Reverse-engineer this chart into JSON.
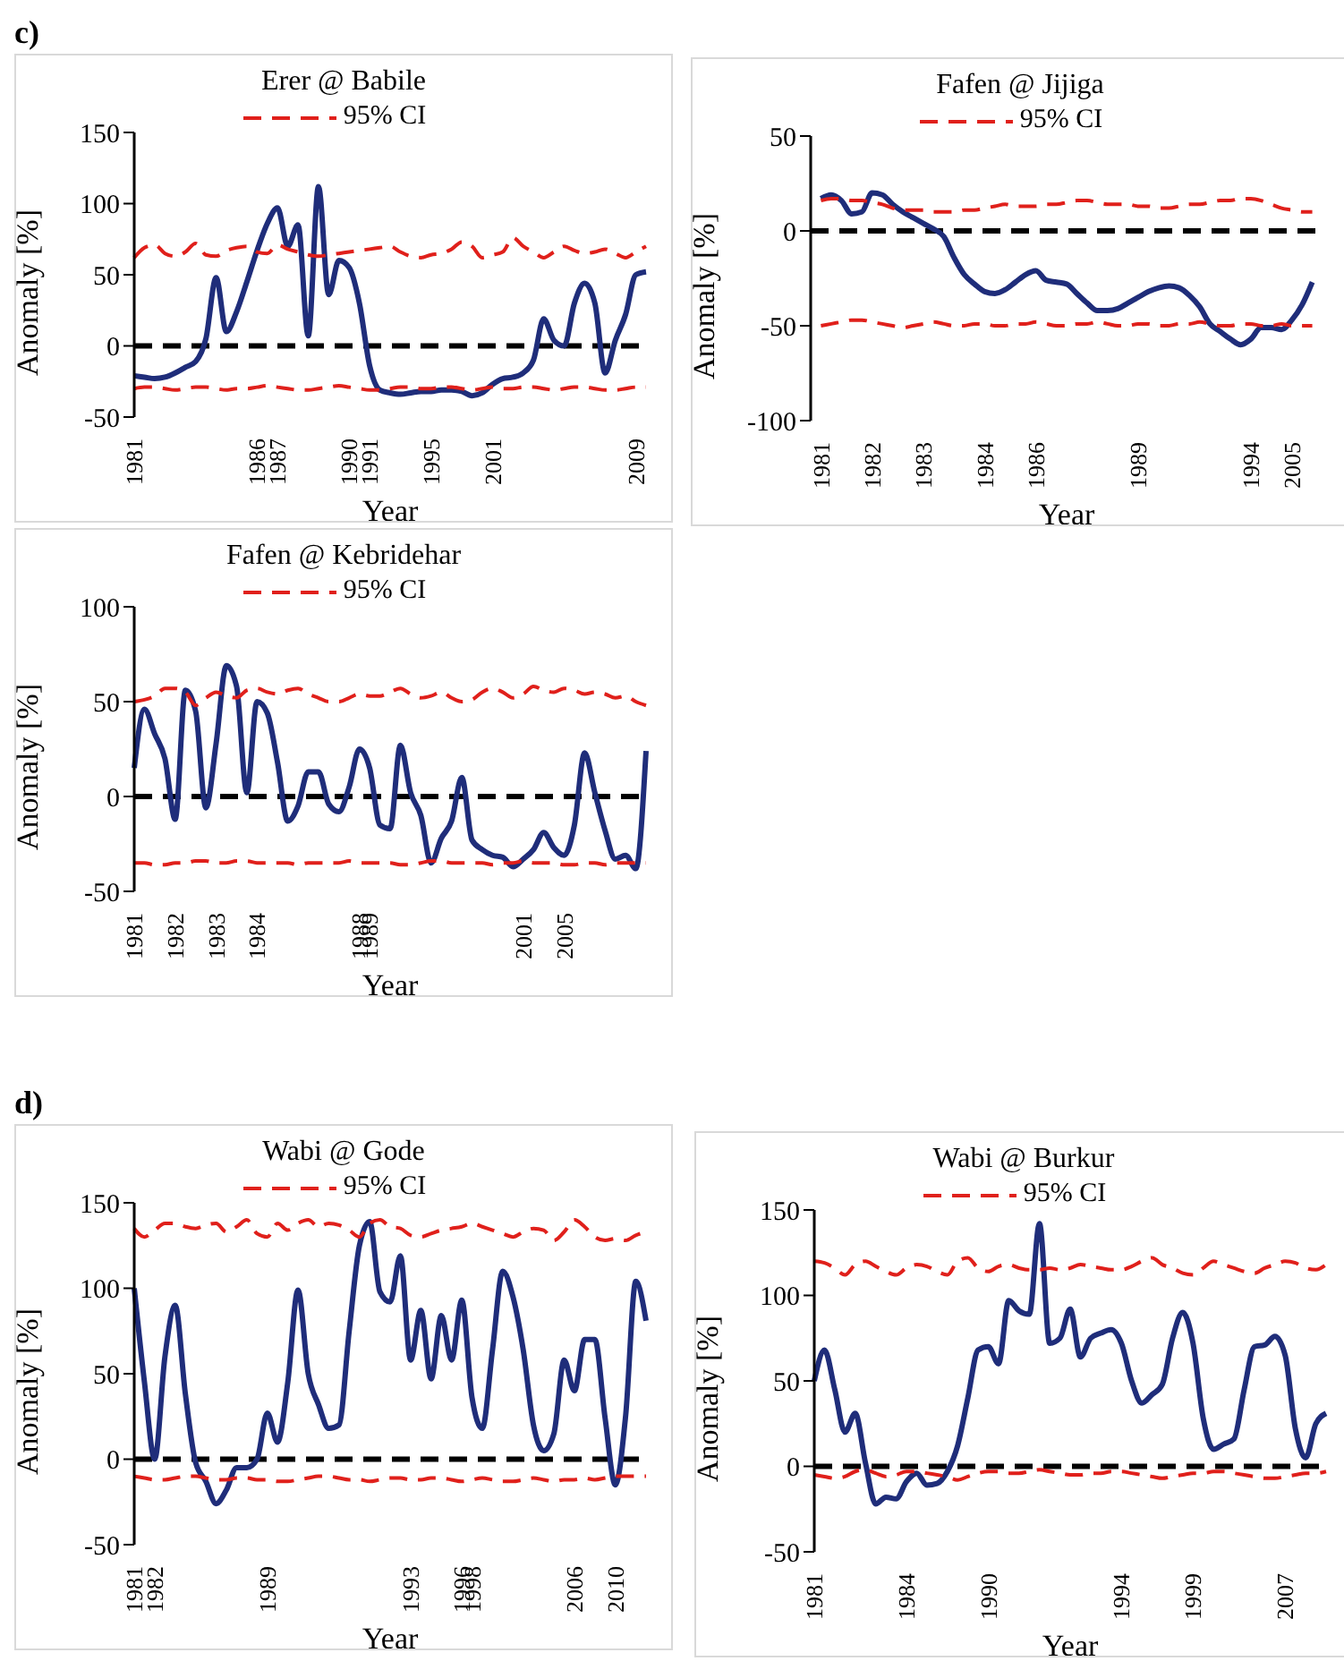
{
  "chart_data": [
    {
      "type": "line",
      "title": "Erer @ Babile",
      "xlabel": "Year",
      "ylabel": "Anomaly [%]",
      "annotations": [
        "c)"
      ],
      "legend": "top",
      "marker": "none",
      "ylim": [
        -50,
        150
      ],
      "yticks": [
        -50,
        0,
        50,
        100,
        150
      ],
      "categories": [
        "1981",
        null,
        null,
        null,
        null,
        null,
        null,
        null,
        null,
        null,
        null,
        null,
        "1986",
        null,
        "1987",
        null,
        null,
        null,
        null,
        null,
        null,
        "1990",
        null,
        "1991",
        null,
        null,
        null,
        null,
        null,
        "1995",
        null,
        null,
        null,
        null,
        null,
        "2001",
        null,
        null,
        null,
        null,
        null,
        null,
        null,
        null,
        null,
        null,
        null,
        null,
        null,
        "2009",
        null
      ],
      "ref_lines": [
        {
          "axis": "y",
          "value": 0,
          "color": "#000000",
          "line_style": "dashed"
        }
      ],
      "series": [
        {
          "color": "#1f2d7a",
          "line_style": "solid",
          "values": [
            -21,
            -22,
            -23,
            -22,
            -19,
            -15,
            -11,
            5,
            48,
            10,
            24,
            45,
            67,
            86,
            97,
            70,
            85,
            7,
            112,
            36,
            60,
            55,
            30,
            -14,
            -31,
            -33,
            -34,
            -33,
            -32,
            -32,
            -31,
            -31,
            -32,
            -35,
            -33,
            -27,
            -23,
            -22,
            -19,
            -10,
            19,
            4,
            0,
            30,
            44,
            30,
            -19,
            4,
            22,
            50,
            52
          ]
        },
        {
          "name": "95% CI",
          "color": "#e0201b",
          "line_style": "dashed",
          "values": [
            62,
            69,
            71,
            65,
            63,
            66,
            72,
            64,
            63,
            67,
            69,
            70,
            66,
            65,
            71,
            68,
            66,
            64,
            63,
            64,
            65,
            66,
            67,
            68,
            69,
            70,
            66,
            63,
            62,
            64,
            65,
            68,
            73,
            70,
            62,
            64,
            66,
            76,
            70,
            66,
            62,
            66,
            70,
            67,
            65,
            66,
            68,
            65,
            62,
            66,
            70
          ]
        },
        {
          "color": "#e0201b",
          "line_style": "dashed",
          "values": [
            -30,
            -29,
            -29,
            -30,
            -31,
            -30,
            -29,
            -29,
            -30,
            -31,
            -30,
            -30,
            -29,
            -28,
            -29,
            -30,
            -31,
            -31,
            -30,
            -29,
            -28,
            -29,
            -30,
            -31,
            -31,
            -30,
            -29,
            -29,
            -30,
            -30,
            -29,
            -29,
            -30,
            -31,
            -30,
            -29,
            -30,
            -30,
            -29,
            -29,
            -30,
            -31,
            -30,
            -29,
            -29,
            -30,
            -31,
            -31,
            -30,
            -29,
            -29
          ]
        }
      ]
    },
    {
      "type": "line",
      "title": "Fafen @ Jijiga",
      "xlabel": "Year",
      "ylabel": "Anomaly [%]",
      "legend": "top",
      "marker": "none",
      "ylim": [
        -100,
        50
      ],
      "yticks": [
        -100,
        -50,
        0,
        50
      ],
      "categories": [
        null,
        "1981",
        null,
        null,
        null,
        null,
        "1982",
        null,
        null,
        null,
        null,
        "1983",
        null,
        null,
        null,
        null,
        null,
        "1984",
        null,
        null,
        null,
        null,
        "1986",
        null,
        null,
        null,
        null,
        null,
        null,
        null,
        null,
        null,
        "1989",
        null,
        null,
        null,
        null,
        null,
        null,
        null,
        null,
        null,
        null,
        "1994",
        null,
        null,
        null,
        "2005",
        null,
        null,
        null
      ],
      "ref_lines": [
        {
          "axis": "y",
          "value": 0,
          "color": "#000000",
          "line_style": "dashed"
        }
      ],
      "series": [
        {
          "color": "#1f2d7a",
          "line_style": "solid",
          "values": [
            null,
            17,
            19,
            16,
            9,
            10,
            20,
            19,
            14,
            10,
            7,
            4,
            1,
            -3,
            -14,
            -23,
            -28,
            -32,
            -33,
            -31,
            -27,
            -23,
            -21,
            -26,
            -27,
            -28,
            -33,
            -38,
            -42,
            -42,
            -41,
            -38,
            -35,
            -32,
            -30,
            -29,
            -30,
            -34,
            -40,
            -49,
            -53,
            -57,
            -60,
            -57,
            -51,
            -51,
            -52,
            -47,
            -39,
            -27,
            null
          ]
        },
        {
          "name": "95% CI",
          "color": "#e0201b",
          "line_style": "dashed",
          "values": [
            null,
            16,
            17,
            17,
            16,
            16,
            15,
            14,
            12,
            11,
            11,
            11,
            10,
            10,
            10,
            11,
            11,
            12,
            13,
            14,
            13,
            13,
            13,
            14,
            14,
            15,
            16,
            16,
            15,
            14,
            14,
            14,
            13,
            13,
            12,
            12,
            13,
            14,
            14,
            15,
            16,
            16,
            17,
            17,
            16,
            14,
            12,
            11,
            10,
            10,
            null
          ]
        },
        {
          "color": "#e0201b",
          "line_style": "dashed",
          "values": [
            null,
            -50,
            -49,
            -48,
            -47,
            -47,
            -48,
            -49,
            -50,
            -51,
            -50,
            -49,
            -48,
            -49,
            -50,
            -50,
            -49,
            -49,
            -50,
            -50,
            -49,
            -49,
            -48,
            -49,
            -50,
            -50,
            -49,
            -49,
            -48,
            -49,
            -50,
            -50,
            -49,
            -49,
            -50,
            -50,
            -49,
            -49,
            -48,
            -49,
            -50,
            -50,
            -49,
            -49,
            -50,
            -50,
            -49,
            -50,
            -50,
            -50,
            null
          ]
        }
      ]
    },
    {
      "type": "line",
      "title": "Fafen @ Kebridehar",
      "xlabel": "Year",
      "ylabel": "Anomaly [%]",
      "legend": "top",
      "marker": "none",
      "ylim": [
        -50,
        100
      ],
      "yticks": [
        -50,
        0,
        50,
        100
      ],
      "categories": [
        "1981",
        null,
        null,
        null,
        "1982",
        null,
        null,
        null,
        "1983",
        null,
        null,
        null,
        "1984",
        null,
        null,
        null,
        null,
        null,
        null,
        null,
        null,
        null,
        "1988",
        "1989",
        null,
        null,
        null,
        null,
        null,
        null,
        null,
        null,
        null,
        null,
        null,
        null,
        null,
        null,
        "2001",
        null,
        null,
        null,
        "2005",
        null,
        null,
        null,
        null,
        null,
        null,
        null,
        null
      ],
      "ref_lines": [
        {
          "axis": "y",
          "value": 0,
          "color": "#000000",
          "line_style": "dashed"
        }
      ],
      "series": [
        {
          "color": "#1f2d7a",
          "line_style": "solid",
          "values": [
            15,
            46,
            33,
            20,
            -12,
            56,
            45,
            -6,
            28,
            69,
            58,
            2,
            50,
            44,
            18,
            -13,
            -5,
            13,
            13,
            -4,
            -8,
            5,
            25,
            15,
            -15,
            -17,
            27,
            2,
            -10,
            -35,
            -22,
            -13,
            10,
            -23,
            -28,
            -31,
            -32,
            -37,
            -33,
            -28,
            -19,
            -27,
            -31,
            -15,
            23,
            2,
            -18,
            -33,
            -31,
            -38,
            24
          ]
        },
        {
          "name": "95% CI",
          "color": "#e0201b",
          "line_style": "dashed",
          "values": [
            50,
            51,
            53,
            57,
            57,
            55,
            48,
            52,
            55,
            53,
            52,
            56,
            57,
            55,
            54,
            56,
            57,
            54,
            52,
            50,
            50,
            52,
            54,
            53,
            53,
            55,
            57,
            54,
            52,
            53,
            55,
            52,
            50,
            51,
            55,
            57,
            55,
            52,
            54,
            58,
            56,
            55,
            57,
            56,
            54,
            55,
            54,
            52,
            53,
            50,
            48
          ]
        },
        {
          "color": "#e0201b",
          "line_style": "dashed",
          "values": [
            -35,
            -35,
            -36,
            -36,
            -35,
            -35,
            -34,
            -34,
            -35,
            -35,
            -34,
            -34,
            -35,
            -35,
            -35,
            -35,
            -36,
            -35,
            -35,
            -35,
            -35,
            -34,
            -35,
            -35,
            -35,
            -35,
            -36,
            -36,
            -35,
            -34,
            -34,
            -35,
            -35,
            -35,
            -35,
            -36,
            -35,
            -35,
            -34,
            -35,
            -35,
            -35,
            -36,
            -36,
            -35,
            -35,
            -36,
            -35,
            -35,
            -35,
            -35
          ]
        }
      ]
    },
    {
      "type": "line",
      "title": "Wabi @ Gode",
      "xlabel": "Year",
      "ylabel": "Anomaly [%]",
      "annotations": [
        "d)"
      ],
      "legend": "top",
      "marker": "none",
      "ylim": [
        -50,
        150
      ],
      "yticks": [
        -50,
        0,
        50,
        100,
        150
      ],
      "categories": [
        "1981",
        null,
        "1982",
        null,
        null,
        null,
        null,
        null,
        null,
        null,
        null,
        null,
        null,
        "1989",
        null,
        null,
        null,
        null,
        null,
        null,
        null,
        null,
        null,
        null,
        null,
        null,
        null,
        "1993",
        null,
        null,
        null,
        null,
        "1996",
        "1998",
        null,
        null,
        null,
        null,
        null,
        null,
        null,
        null,
        null,
        "2006",
        null,
        null,
        null,
        "2010",
        null,
        null,
        null
      ],
      "ref_lines": [
        {
          "axis": "y",
          "value": 0,
          "color": "#000000",
          "line_style": "dashed"
        }
      ],
      "series": [
        {
          "color": "#1f2d7a",
          "line_style": "solid",
          "values": [
            100,
            45,
            0,
            60,
            90,
            38,
            -2,
            -13,
            -26,
            -18,
            -5,
            -5,
            0,
            27,
            10,
            45,
            99,
            50,
            32,
            18,
            20,
            75,
            125,
            139,
            98,
            92,
            119,
            58,
            87,
            47,
            84,
            58,
            93,
            36,
            18,
            64,
            110,
            95,
            64,
            20,
            5,
            15,
            58,
            40,
            70,
            70,
            24,
            -15,
            25,
            104,
            81
          ]
        },
        {
          "name": "95% CI",
          "color": "#e0201b",
          "line_style": "dashed",
          "values": [
            135,
            130,
            134,
            138,
            138,
            136,
            135,
            137,
            138,
            133,
            136,
            140,
            132,
            130,
            138,
            134,
            138,
            140,
            136,
            138,
            137,
            134,
            130,
            138,
            140,
            136,
            135,
            131,
            130,
            132,
            134,
            135,
            136,
            138,
            136,
            134,
            132,
            130,
            133,
            135,
            134,
            128,
            133,
            140,
            136,
            130,
            128,
            129,
            128,
            131,
            133
          ]
        },
        {
          "color": "#e0201b",
          "line_style": "dashed",
          "values": [
            -10,
            -11,
            -12,
            -12,
            -11,
            -10,
            -10,
            -11,
            -12,
            -12,
            -11,
            -11,
            -12,
            -12,
            -13,
            -13,
            -12,
            -11,
            -10,
            -10,
            -11,
            -12,
            -12,
            -13,
            -12,
            -11,
            -11,
            -12,
            -12,
            -11,
            -11,
            -12,
            -13,
            -12,
            -11,
            -12,
            -13,
            -13,
            -12,
            -11,
            -12,
            -13,
            -12,
            -12,
            -11,
            -12,
            -11,
            -10,
            -10,
            -10,
            -10
          ]
        }
      ]
    },
    {
      "type": "line",
      "title": "Wabi @ Burkur",
      "xlabel": "Year",
      "ylabel": "Anomaly [%]",
      "legend": "top",
      "marker": "none",
      "ylim": [
        -50,
        150
      ],
      "yticks": [
        -50,
        0,
        50,
        100,
        150
      ],
      "categories": [
        "1981",
        null,
        null,
        null,
        null,
        null,
        null,
        null,
        null,
        "1984",
        null,
        null,
        null,
        null,
        null,
        null,
        null,
        "1990",
        null,
        null,
        null,
        null,
        null,
        null,
        null,
        null,
        null,
        null,
        null,
        null,
        "1994",
        null,
        null,
        null,
        null,
        null,
        null,
        "1999",
        null,
        null,
        null,
        null,
        null,
        null,
        null,
        null,
        "2007",
        null,
        null,
        null,
        null
      ],
      "ref_lines": [
        {
          "axis": "y",
          "value": 0,
          "color": "#000000",
          "line_style": "dashed"
        }
      ],
      "series": [
        {
          "color": "#1f2d7a",
          "line_style": "solid",
          "values": [
            50,
            68,
            45,
            20,
            31,
            2,
            -22,
            -18,
            -19,
            -9,
            -4,
            -11,
            -10,
            -3,
            12,
            40,
            68,
            70,
            60,
            97,
            91,
            89,
            142,
            72,
            75,
            92,
            64,
            75,
            78,
            80,
            72,
            50,
            37,
            42,
            48,
            75,
            90,
            72,
            28,
            10,
            13,
            16,
            45,
            70,
            71,
            76,
            65,
            22,
            5,
            25,
            31
          ]
        },
        {
          "name": "95% CI",
          "color": "#e0201b",
          "line_style": "dashed",
          "values": [
            120,
            119,
            116,
            112,
            118,
            120,
            117,
            114,
            112,
            116,
            118,
            117,
            114,
            112,
            120,
            122,
            116,
            114,
            117,
            118,
            116,
            115,
            115,
            116,
            115,
            116,
            118,
            117,
            116,
            115,
            115,
            117,
            120,
            122,
            118,
            116,
            113,
            112,
            116,
            120,
            118,
            116,
            114,
            113,
            116,
            118,
            120,
            119,
            116,
            115,
            118
          ]
        },
        {
          "color": "#e0201b",
          "line_style": "dashed",
          "values": [
            -5,
            -6,
            -7,
            -6,
            -3,
            -2,
            -4,
            -6,
            -5,
            -3,
            -3,
            -4,
            -5,
            -6,
            -8,
            -6,
            -4,
            -3,
            -3,
            -4,
            -4,
            -3,
            -2,
            -3,
            -4,
            -5,
            -5,
            -4,
            -4,
            -3,
            -3,
            -4,
            -5,
            -6,
            -7,
            -6,
            -5,
            -4,
            -4,
            -3,
            -3,
            -4,
            -5,
            -6,
            -7,
            -7,
            -6,
            -5,
            -4,
            -4,
            -3
          ]
        }
      ]
    }
  ]
}
